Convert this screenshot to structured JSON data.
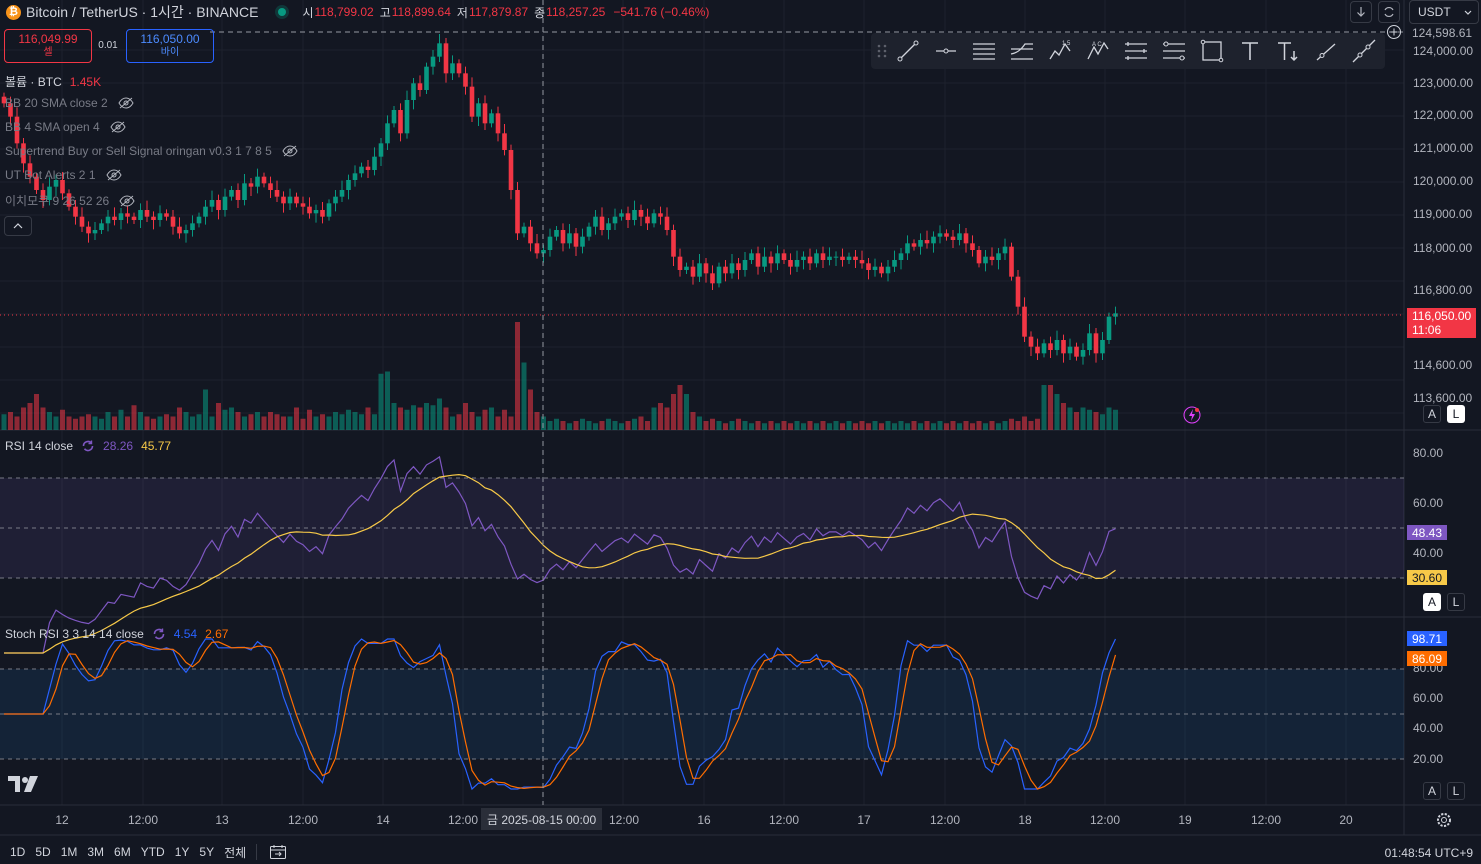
{
  "header": {
    "symbol_title": "Bitcoin / TetherUS · 1시간 · BINANCE",
    "logo_glyph": "₿",
    "ohlc": [
      {
        "label": "시",
        "value": "118,799.02"
      },
      {
        "label": "고",
        "value": "118,899.64"
      },
      {
        "label": "저",
        "value": "117,879.87"
      },
      {
        "label": "종",
        "value": "118,257.25"
      }
    ],
    "change": "−541.76 (−0.46%)",
    "currency": "USDT"
  },
  "trade": {
    "sell_price": "116,049.99",
    "sell_label": "셀",
    "spread": "0.01",
    "buy_price": "116,050.00",
    "buy_label": "바이"
  },
  "legend": {
    "volume_label": "볼륨 · BTC",
    "volume_value": "1.45K",
    "indicators": [
      "BB 20 SMA close 2",
      "BB 4 SMA open 4",
      "Supertrend Buy or Sell Signal oringan v0.3 1 7 8 5",
      "UT Bot Alerts 2 1",
      "이치모쿠 9 26 52 26"
    ]
  },
  "price_axis": {
    "labels": [
      "124,000.00",
      "123,000.00",
      "122,000.00",
      "121,000.00",
      "120,000.00",
      "119,000.00",
      "118,000.00",
      "116,800.00",
      "114,600.00",
      "113,600.00"
    ],
    "top_partial": "124,598.61",
    "current_price": "116,050.00",
    "countdown": "11:06"
  },
  "rsi": {
    "title": "RSI 14 close",
    "value_rsi": "28.26",
    "value_ma": "45.77",
    "axis_labels": [
      "80.00",
      "60.00",
      "40.00"
    ],
    "badge_rsi": "48.43",
    "badge_ma": "30.60",
    "colors": {
      "rsi": "#7e57c2",
      "ma": "#f7c948"
    }
  },
  "stoch": {
    "title": "Stoch RSI 3 3 14 14 close",
    "value_k": "4.54",
    "value_d": "2.67",
    "axis_labels": [
      "80.00",
      "60.00",
      "40.00",
      "20.00"
    ],
    "badge_k": "98.71",
    "badge_d": "86.09",
    "colors": {
      "k": "#2962ff",
      "d": "#ff6d00"
    }
  },
  "time_axis": {
    "labels": [
      "12",
      "12:00",
      "13",
      "12:00",
      "14",
      "12:00",
      "12:00",
      "16",
      "12:00",
      "17",
      "12:00",
      "18",
      "12:00",
      "19",
      "12:00",
      "20"
    ],
    "crosshair_label": "금 2025-08-15   00:00"
  },
  "scale_buttons": {
    "auto": "A",
    "log": "L"
  },
  "bottom": {
    "ranges": [
      "1D",
      "5D",
      "1M",
      "3M",
      "6M",
      "YTD",
      "1Y",
      "5Y",
      "전체"
    ],
    "clock": "01:48:54 UTC+9"
  },
  "colors": {
    "up": "#089981",
    "down": "#f23645",
    "background": "#131722"
  },
  "chart_data": {
    "type": "candlestick",
    "interval": "1h",
    "closes": [
      122400,
      122000,
      121200,
      120600,
      120200,
      119800,
      119500,
      119900,
      120100,
      119700,
      119300,
      119000,
      118700,
      118500,
      118600,
      118800,
      119000,
      118900,
      119100,
      119000,
      118900,
      119200,
      119000,
      118900,
      119100,
      119000,
      118700,
      118500,
      118600,
      118800,
      119000,
      119300,
      119500,
      119200,
      119600,
      119800,
      119500,
      120000,
      119900,
      120200,
      120000,
      119800,
      119600,
      119400,
      119600,
      119400,
      119300,
      119100,
      119200,
      119000,
      119400,
      119600,
      119800,
      120100,
      120300,
      120500,
      120400,
      120800,
      121200,
      121800,
      122200,
      121500,
      122500,
      123000,
      122800,
      123500,
      123800,
      124200,
      123300,
      123600,
      123300,
      122900,
      122000,
      122400,
      121800,
      122100,
      121500,
      121000,
      119800,
      118500,
      118700,
      118200,
      117900,
      118000,
      118400,
      118600,
      118200,
      118500,
      118100,
      118400,
      118700,
      119000,
      118600,
      118800,
      119000,
      119100,
      118900,
      119200,
      119000,
      118800,
      119100,
      119000,
      118600,
      117800,
      117400,
      117500,
      117200,
      117600,
      117300,
      117000,
      117500,
      117300,
      117600,
      117400,
      117700,
      117900,
      117500,
      117800,
      117600,
      117900,
      117700,
      117500,
      117700,
      117800,
      117600,
      117900,
      117700,
      117800,
      117800,
      117700,
      117800,
      117700,
      117600,
      117400,
      117500,
      117300,
      117500,
      117700,
      117900,
      118200,
      118100,
      118300,
      118200,
      118400,
      118500,
      118400,
      118300,
      118500,
      118200,
      118000,
      117600,
      117800,
      117700,
      117900,
      118100,
      117200,
      116300,
      115400,
      115100,
      114900,
      115200,
      115000,
      115300,
      114900,
      115100,
      114800,
      115000,
      115500,
      114900,
      115300,
      116000,
      116100
    ],
    "volume_rel": [
      0.35,
      0.4,
      0.3,
      0.5,
      0.6,
      0.8,
      0.5,
      0.4,
      0.3,
      0.45,
      0.3,
      0.25,
      0.3,
      0.35,
      0.3,
      0.25,
      0.4,
      0.3,
      0.45,
      0.3,
      0.55,
      0.4,
      0.3,
      0.25,
      0.3,
      0.35,
      0.3,
      0.5,
      0.4,
      0.3,
      0.35,
      0.9,
      0.3,
      0.6,
      0.45,
      0.5,
      0.4,
      0.3,
      0.35,
      0.4,
      0.3,
      0.4,
      0.35,
      0.3,
      0.3,
      0.5,
      0.25,
      0.45,
      0.3,
      0.35,
      0.3,
      0.4,
      0.35,
      0.45,
      0.4,
      0.35,
      0.5,
      0.35,
      1.25,
      1.3,
      0.6,
      0.5,
      0.45,
      0.55,
      0.5,
      0.6,
      0.55,
      0.7,
      0.5,
      0.3,
      0.35,
      0.6,
      0.4,
      0.3,
      0.45,
      0.5,
      0.3,
      0.45,
      0.3,
      2.4,
      1.5,
      0.9,
      0.4,
      0.3,
      0.2,
      0.25,
      0.2,
      0.15,
      0.2,
      0.25,
      0.2,
      0.15,
      0.2,
      0.25,
      0.2,
      0.15,
      0.2,
      0.25,
      0.3,
      0.2,
      0.5,
      0.6,
      0.5,
      0.8,
      1.0,
      0.8,
      0.4,
      0.3,
      0.2,
      0.25,
      0.2,
      0.15,
      0.2,
      0.25,
      0.2,
      0.15,
      0.2,
      0.15,
      0.2,
      0.15,
      0.2,
      0.15,
      0.2,
      0.15,
      0.2,
      0.15,
      0.2,
      0.15,
      0.2,
      0.15,
      0.2,
      0.15,
      0.2,
      0.15,
      0.2,
      0.15,
      0.2,
      0.15,
      0.2,
      0.15,
      0.2,
      0.15,
      0.2,
      0.15,
      0.2,
      0.15,
      0.2,
      0.15,
      0.2,
      0.15,
      0.2,
      0.15,
      0.2,
      0.15,
      0.2,
      0.25,
      0.2,
      0.3,
      0.2,
      0.25,
      1.0,
      1.0,
      0.8,
      0.6,
      0.5,
      0.4,
      0.5,
      0.45,
      0.4,
      0.35,
      0.5,
      0.45,
      0.4,
      0.3,
      0.4,
      0.3,
      0.35
    ]
  }
}
